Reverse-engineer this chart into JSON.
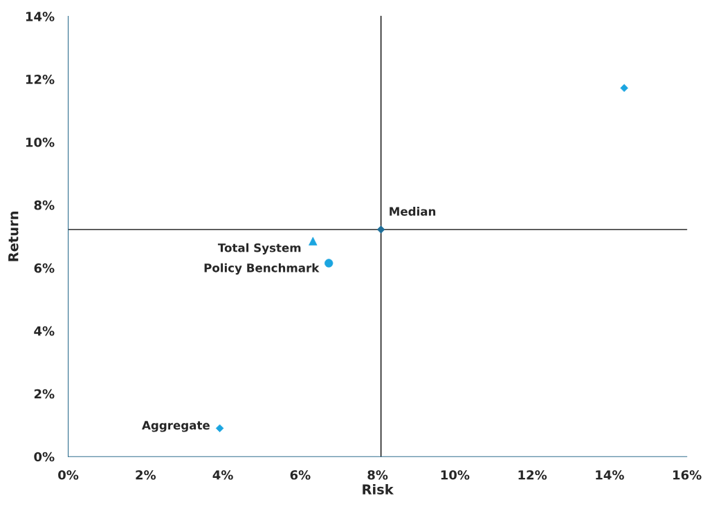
{
  "chart_data": {
    "type": "scatter",
    "xlabel": "Risk",
    "ylabel": "Return",
    "xlim": [
      0,
      16
    ],
    "ylim": [
      0,
      14
    ],
    "xticks": [
      {
        "value": 0,
        "label": "0%"
      },
      {
        "value": 2,
        "label": "2%"
      },
      {
        "value": 4,
        "label": "4%"
      },
      {
        "value": 6,
        "label": "6%"
      },
      {
        "value": 8,
        "label": "8%"
      },
      {
        "value": 10,
        "label": "10%"
      },
      {
        "value": 12,
        "label": "12%"
      },
      {
        "value": 14,
        "label": "14%"
      },
      {
        "value": 16,
        "label": "16%"
      }
    ],
    "yticks": [
      {
        "value": 0,
        "label": "0%"
      },
      {
        "value": 2,
        "label": "2%"
      },
      {
        "value": 4,
        "label": "4%"
      },
      {
        "value": 6,
        "label": "6%"
      },
      {
        "value": 8,
        "label": "8%"
      },
      {
        "value": 10,
        "label": "10%"
      },
      {
        "value": 12,
        "label": "12%"
      },
      {
        "value": 14,
        "label": "14%"
      }
    ],
    "grid": false,
    "legend": false,
    "ref_lines": [
      {
        "axis": "x",
        "value": 8.09,
        "color": "#000000"
      },
      {
        "axis": "y",
        "value": 7.22,
        "color": "#000000"
      }
    ],
    "series": [
      {
        "name": "Total System",
        "color": "#1ba5e0",
        "marker": "triangle",
        "x": [
          6.33
        ],
        "values": [
          6.85
        ]
      },
      {
        "name": "Policy Benchmark",
        "color": "#1ba5e0",
        "marker": "circle",
        "x": [
          6.74
        ],
        "values": [
          6.15
        ]
      },
      {
        "name": "Median",
        "color": "#1f6f99",
        "marker": "diamond",
        "x": [
          8.09
        ],
        "values": [
          7.22
        ]
      },
      {
        "color": "#1ba5e0",
        "marker": "diamond",
        "x": [
          14.38
        ],
        "values": [
          11.72
        ]
      },
      {
        "name": "Aggregate",
        "color": "#1ba5e0",
        "marker": "diamond",
        "x": [
          3.92
        ],
        "values": [
          0.9
        ]
      }
    ]
  }
}
